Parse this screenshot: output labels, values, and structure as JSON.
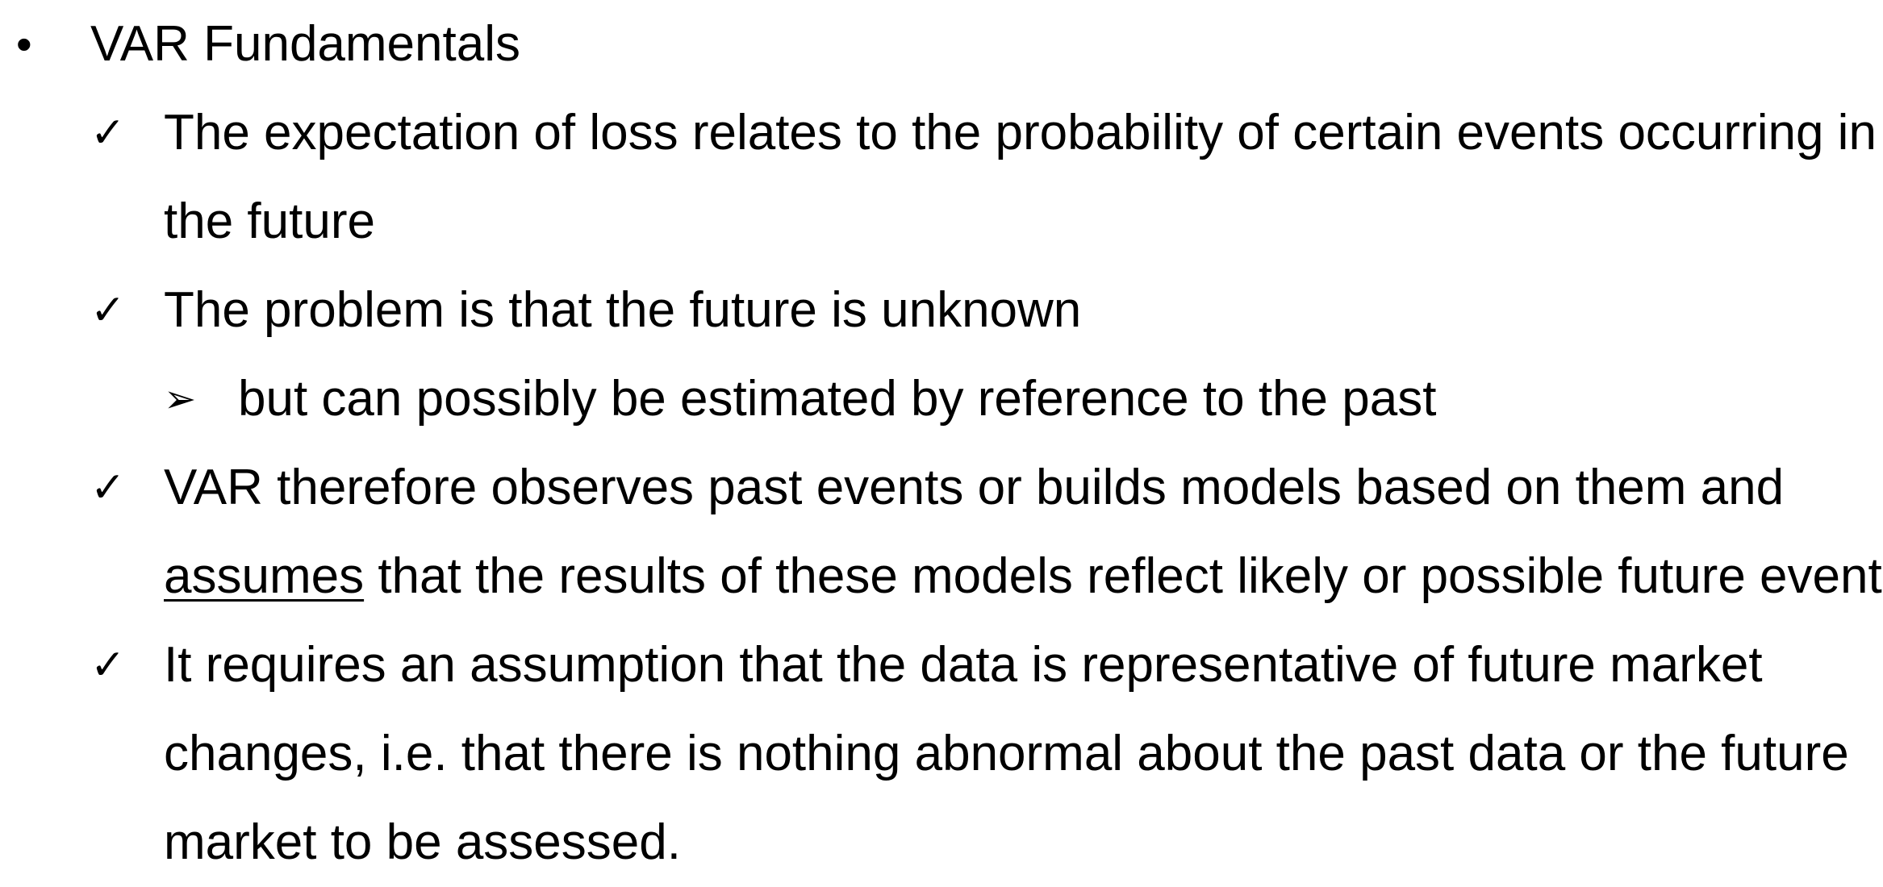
{
  "heading": {
    "bullet": "•",
    "text": "VAR Fundamentals"
  },
  "points": {
    "p1": {
      "marker": "✓",
      "line1": "The expectation of loss relates to the probability of certain events occurring in",
      "line2": "the future"
    },
    "p2": {
      "marker": "✓",
      "line1": "The problem is that the future is unknown",
      "sub": {
        "marker": "➢",
        "text": "but can possibly be estimated by reference to the past"
      }
    },
    "p3": {
      "marker": "✓",
      "line1": "VAR therefore observes past events or builds models based on them and",
      "line2_underlined": "assumes",
      "line2_rest": " that the results of these models reflect likely or possible future events"
    },
    "p4": {
      "marker": "✓",
      "line1": "It requires an assumption that the data is representative of future market",
      "line2": "changes, i.e. that there is nothing abnormal about the past data or the future",
      "line3": "market to be assessed."
    }
  }
}
